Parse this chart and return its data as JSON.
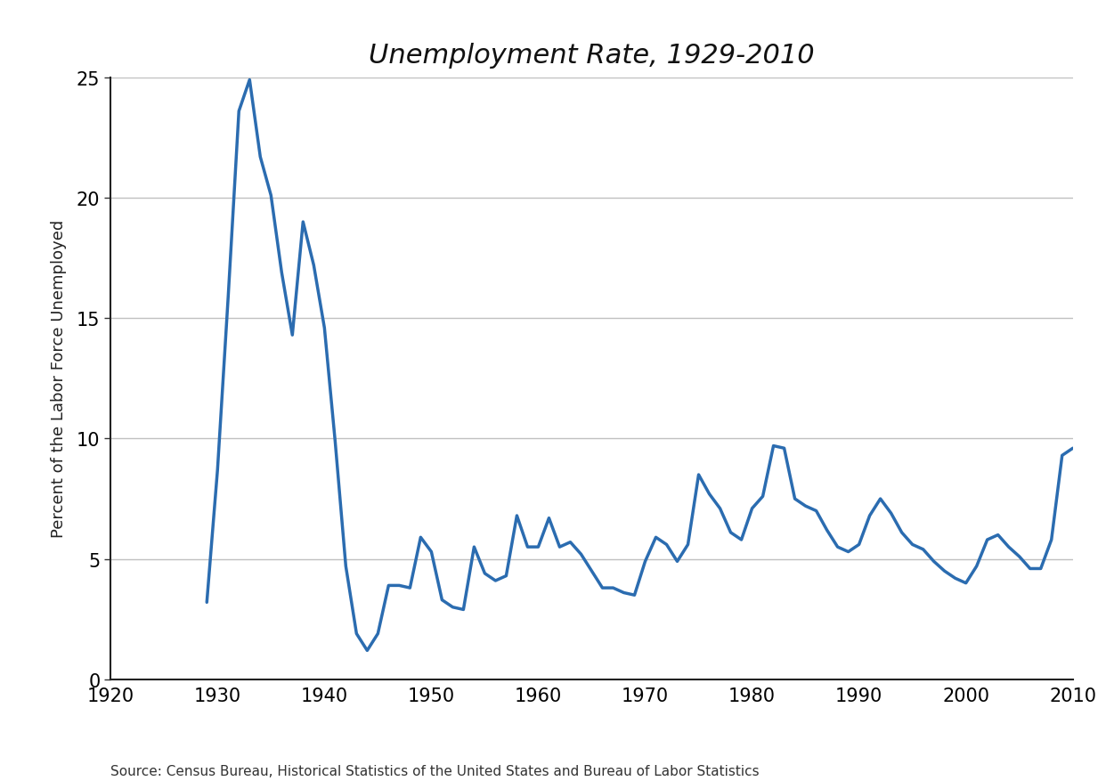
{
  "title": "Unemployment Rate, 1929-2010",
  "ylabel": "Percent of the Labor Force Unemployed",
  "source": "Source: Census Bureau, Historical Statistics of the United States and Bureau of Labor Statistics",
  "line_color": "#2b6cb0",
  "line_width": 2.5,
  "background_color": "#ffffff",
  "grid_color": "#c0c0c0",
  "xlim": [
    1920,
    2010
  ],
  "ylim": [
    0,
    25
  ],
  "xticks": [
    1920,
    1930,
    1940,
    1950,
    1960,
    1970,
    1980,
    1990,
    2000,
    2010
  ],
  "yticks": [
    0,
    5,
    10,
    15,
    20,
    25
  ],
  "years": [
    1929,
    1930,
    1931,
    1932,
    1933,
    1934,
    1935,
    1936,
    1937,
    1938,
    1939,
    1940,
    1941,
    1942,
    1943,
    1944,
    1945,
    1946,
    1947,
    1948,
    1949,
    1950,
    1951,
    1952,
    1953,
    1954,
    1955,
    1956,
    1957,
    1958,
    1959,
    1960,
    1961,
    1962,
    1963,
    1964,
    1965,
    1966,
    1967,
    1968,
    1969,
    1970,
    1971,
    1972,
    1973,
    1974,
    1975,
    1976,
    1977,
    1978,
    1979,
    1980,
    1981,
    1982,
    1983,
    1984,
    1985,
    1986,
    1987,
    1988,
    1989,
    1990,
    1991,
    1992,
    1993,
    1994,
    1995,
    1996,
    1997,
    1998,
    1999,
    2000,
    2001,
    2002,
    2003,
    2004,
    2005,
    2006,
    2007,
    2008,
    2009,
    2010
  ],
  "unemployment": [
    3.2,
    8.7,
    15.9,
    23.6,
    24.9,
    21.7,
    20.1,
    16.9,
    14.3,
    19.0,
    17.2,
    14.6,
    9.9,
    4.7,
    1.9,
    1.2,
    1.9,
    3.9,
    3.9,
    3.8,
    5.9,
    5.3,
    3.3,
    3.0,
    2.9,
    5.5,
    4.4,
    4.1,
    4.3,
    6.8,
    5.5,
    5.5,
    6.7,
    5.5,
    5.7,
    5.2,
    4.5,
    3.8,
    3.8,
    3.6,
    3.5,
    4.9,
    5.9,
    5.6,
    4.9,
    5.6,
    8.5,
    7.7,
    7.1,
    6.1,
    5.8,
    7.1,
    7.6,
    9.7,
    9.6,
    7.5,
    7.2,
    7.0,
    6.2,
    5.5,
    5.3,
    5.6,
    6.8,
    7.5,
    6.9,
    6.1,
    5.6,
    5.4,
    4.9,
    4.5,
    4.2,
    4.0,
    4.7,
    5.8,
    6.0,
    5.5,
    5.1,
    4.6,
    4.6,
    5.8,
    9.3,
    9.6
  ],
  "title_fontsize": 22,
  "tick_fontsize": 15,
  "ylabel_fontsize": 13,
  "source_fontsize": 11
}
